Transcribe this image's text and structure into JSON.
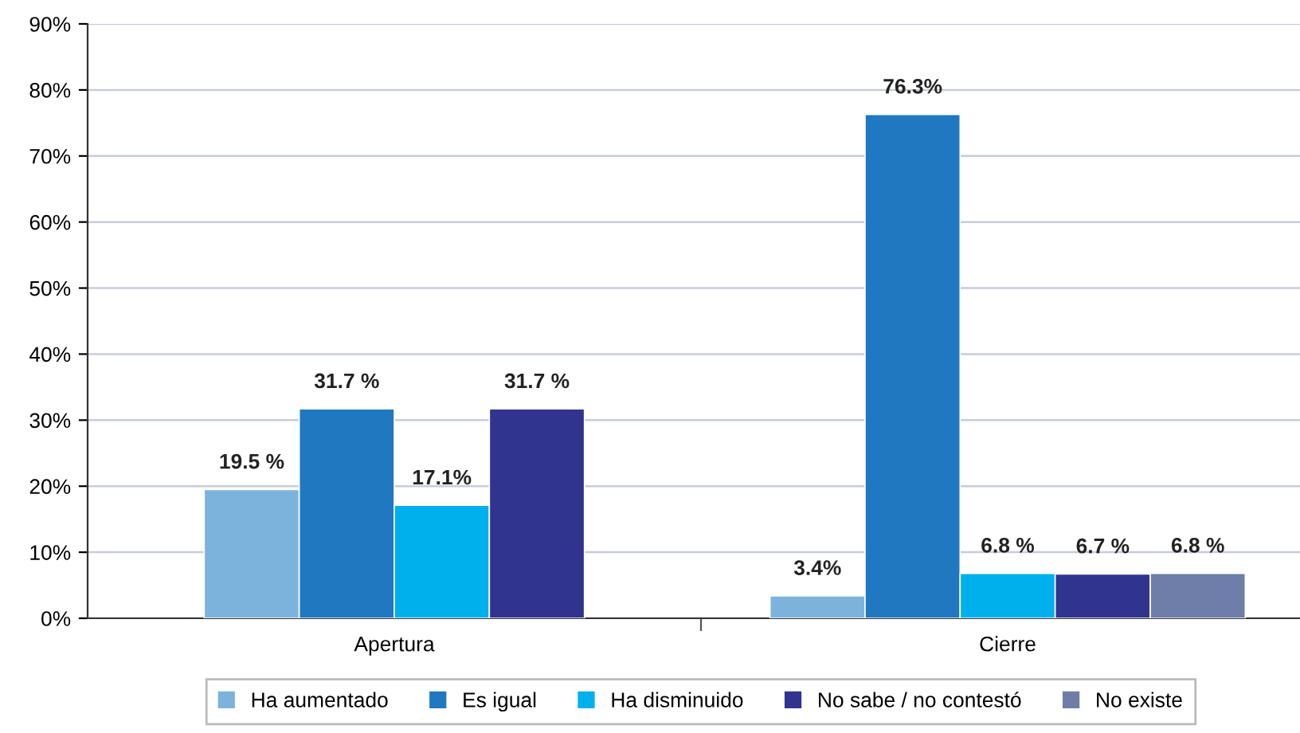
{
  "chart_data": {
    "type": "bar",
    "categories": [
      "Apertura",
      "Cierre"
    ],
    "series": [
      {
        "name": "Ha aumentado",
        "color": "#7cb3dd",
        "values": [
          19.5,
          3.4
        ],
        "value_labels": [
          "19.5 %",
          "3.4%"
        ]
      },
      {
        "name": "Es igual",
        "color": "#2078c0",
        "values": [
          31.7,
          76.3
        ],
        "value_labels": [
          "31.7 %",
          "76.3%"
        ]
      },
      {
        "name": "Ha disminuido",
        "color": "#00b0ec",
        "values": [
          17.1,
          6.8
        ],
        "value_labels": [
          "17.1%",
          "6.8 %"
        ]
      },
      {
        "name": "No sabe / no contestó",
        "color": "#30348e",
        "values": [
          31.7,
          6.7
        ],
        "value_labels": [
          "31.7 %",
          "6.7 %"
        ]
      },
      {
        "name": "No existe",
        "color": "#6e7ea8",
        "values": [
          null,
          6.8
        ],
        "value_labels": [
          null,
          "6.8 %"
        ]
      }
    ],
    "ylim": [
      0,
      90
    ],
    "yticks": [
      {
        "value": 0,
        "label": "0%"
      },
      {
        "value": 10,
        "label": "10%"
      },
      {
        "value": 20,
        "label": "20%"
      },
      {
        "value": 30,
        "label": "30%"
      },
      {
        "value": 40,
        "label": "40%"
      },
      {
        "value": 50,
        "label": "50%"
      },
      {
        "value": 60,
        "label": "60%"
      },
      {
        "value": 70,
        "label": "70%"
      },
      {
        "value": 80,
        "label": "80%"
      },
      {
        "value": 90,
        "label": "90%"
      }
    ],
    "grid": "y",
    "legend": "bottom"
  }
}
